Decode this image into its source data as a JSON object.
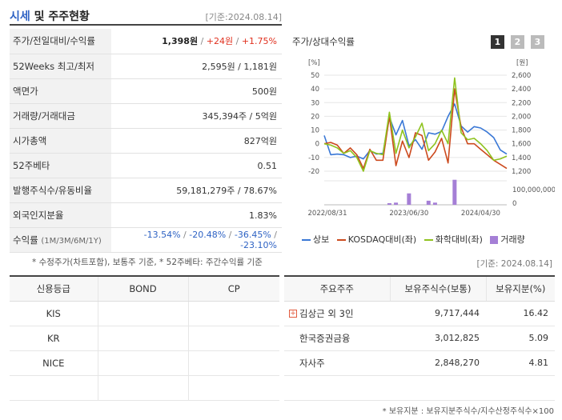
{
  "header": {
    "title_accent": "시세",
    "title_rest": " 및 주주현황",
    "date": "[기준:2024.08.14]"
  },
  "info": {
    "price": {
      "label": "주가/전일대비/수익률",
      "price": "1,398원",
      "change": "+24원",
      "rate": "+1.75%"
    },
    "weeks52": {
      "label": "52Weeks 최고/최저",
      "value": "2,595원 / 1,181원"
    },
    "par": {
      "label": "액면가",
      "value": "500원"
    },
    "volume": {
      "label": "거래량/거래대금",
      "value": "345,394주 / 5억원"
    },
    "mcap": {
      "label": "시가총액",
      "value": "827억원"
    },
    "beta": {
      "label": "52주베타",
      "value": "0.51"
    },
    "shares": {
      "label": "발행주식수/유동비율",
      "value": "59,181,279주 / 78.67%"
    },
    "foreign": {
      "label": "외국인지분율",
      "value": "1.83%"
    },
    "returns": {
      "label": "수익률",
      "period": "(1M/3M/6M/1Y)",
      "r1": "-13.54%",
      "r2": "-20.48%",
      "r3": "-36.45%",
      "r4": "-23.10%"
    }
  },
  "note_left": "* 수정주가(차트포함), 보통주 기준, * 52주베타: 주간수익률 기준",
  "chart": {
    "title": "주가/상대수익률",
    "tabs": [
      "1",
      "2",
      "3"
    ],
    "left_unit": "[%]",
    "right_unit": "[원]",
    "volume_tick": "100,000,000",
    "volume_zero": "0",
    "legend": {
      "s1": "상보",
      "s2": "KOSDAQ대비(좌)",
      "s3": "화학대비(좌)",
      "s4": "거래량"
    },
    "colors": {
      "s1": "#3a78d6",
      "s2": "#cc4a1e",
      "s3": "#8fc31f",
      "s4": "#a57fd6"
    }
  },
  "chart_data": {
    "type": "line",
    "x_ticks": [
      "2022/08/31",
      "2023/06/30",
      "2024/04/30"
    ],
    "y_left_ticks": [
      "50",
      "40",
      "30",
      "20",
      "10",
      "0",
      "-10",
      "-20"
    ],
    "y_right_ticks": [
      "2,600",
      "2,400",
      "2,200",
      "2,000",
      "1,800",
      "1,600",
      "1,400",
      "1,200"
    ],
    "ylim_left": [
      -20,
      50
    ],
    "ylim_right": [
      1200,
      2600
    ],
    "series": [
      {
        "name": "상보",
        "axis": "right",
        "values": [
          1720,
          1440,
          1450,
          1440,
          1400,
          1420,
          1380,
          1500,
          1450,
          1460,
          1990,
          1730,
          1940,
          1570,
          1660,
          1520,
          1760,
          1740,
          1780,
          2000,
          2180,
          1860,
          1770,
          1850,
          1830,
          1770,
          1690,
          1510,
          1450
        ]
      },
      {
        "name": "KOSDAQ대비(좌)",
        "axis": "left",
        "values": [
          0,
          1,
          -1,
          -7,
          -3,
          -8,
          -18,
          -4,
          -12,
          -12,
          20,
          -16,
          2,
          -10,
          8,
          6,
          -12,
          -6,
          4,
          -14,
          40,
          12,
          0,
          0,
          -4,
          -8,
          -12,
          -15,
          -18
        ]
      },
      {
        "name": "화학대비(좌)",
        "axis": "left",
        "values": [
          0,
          -1,
          -3,
          -7,
          -5,
          -10,
          -20,
          -5,
          -7,
          -8,
          23,
          -7,
          10,
          -3,
          5,
          15,
          -5,
          0,
          10,
          0,
          48,
          8,
          3,
          4,
          0,
          -5,
          -12,
          -11,
          -9
        ]
      },
      {
        "name": "거래량",
        "axis": "volume",
        "values": [
          0,
          0,
          0,
          0,
          0,
          0,
          0,
          0,
          0,
          0,
          0.06,
          0.08,
          0,
          0.42,
          0,
          0,
          0.15,
          0.08,
          0,
          0,
          0.92,
          0,
          0,
          0,
          0,
          0,
          0,
          0,
          0
        ]
      }
    ]
  },
  "date_right": "[기준: 2024.08.14]",
  "credit": {
    "headers": [
      "신용등급",
      "BOND",
      "CP"
    ],
    "rows": [
      [
        "KIS",
        "",
        ""
      ],
      [
        "KR",
        "",
        ""
      ],
      [
        "NICE",
        "",
        ""
      ],
      [
        "",
        "",
        ""
      ]
    ]
  },
  "holders": {
    "headers": [
      "주요주주",
      "보유주식수(보통)",
      "보유지분(%)"
    ],
    "rows": [
      {
        "name": "김상근 외 3인",
        "shares": "9,717,444",
        "pct": "16.42",
        "expand": "+"
      },
      {
        "name": "한국증권금융",
        "shares": "3,012,825",
        "pct": "5.09"
      },
      {
        "name": "자사주",
        "shares": "2,848,270",
        "pct": "4.81"
      },
      {
        "name": "",
        "shares": "",
        "pct": ""
      }
    ]
  },
  "note_bottom": "* 보유지분 : 보유지분주식수/지수산정주식수×100"
}
